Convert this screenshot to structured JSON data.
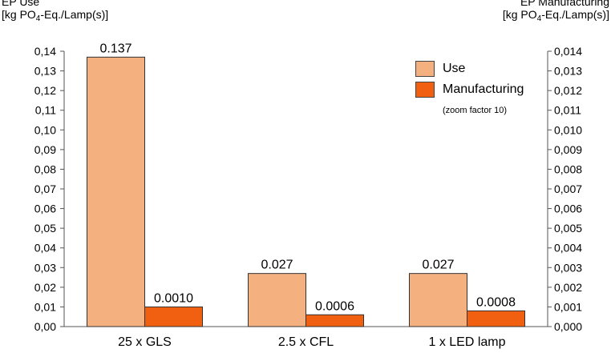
{
  "chart_data": {
    "type": "bar",
    "categories": [
      "25 x GLS",
      "2.5 x CFL",
      "1 x LED lamp"
    ],
    "series": [
      {
        "name": "Use",
        "axis": "left",
        "color": "#f5b07f",
        "values": [
          0.137,
          0.027,
          0.027
        ],
        "labels": [
          "0.137",
          "0.027",
          "0.027"
        ]
      },
      {
        "name": "Manufacturing",
        "axis": "right",
        "color": "#f06010",
        "values": [
          0.001,
          0.0006,
          0.0008
        ],
        "labels": [
          "0.0010",
          "0.0006",
          "0.0008"
        ]
      }
    ],
    "ylabel_left": {
      "line1": "EP Use",
      "line2_pre": "[kg PO",
      "line2_sub": "4",
      "line2_post": "-Eq./Lamp(s)]"
    },
    "ylabel_right": {
      "line1": "EP Manufacturing",
      "line2_pre": "[kg PO",
      "line2_sub": "4",
      "line2_post": "-Eq./Lamp(s)]"
    },
    "ylim_left": [
      0,
      0.14
    ],
    "ylim_right": [
      0,
      0.014
    ],
    "yticks_left": [
      "0,00",
      "0,01",
      "0,02",
      "0,03",
      "0,04",
      "0,05",
      "0,06",
      "0,07",
      "0,08",
      "0,09",
      "0,10",
      "0,11",
      "0,12",
      "0,13",
      "0,14"
    ],
    "yticks_right": [
      "0,000",
      "0,001",
      "0,002",
      "0,003",
      "0,004",
      "0,005",
      "0,006",
      "0,007",
      "0,008",
      "0,009",
      "0,010",
      "0,011",
      "0,012",
      "0,013",
      "0,014"
    ],
    "legend": {
      "position": "top-right",
      "items": [
        "Use",
        "Manufacturing"
      ],
      "note": "(zoom factor 10)"
    },
    "grid": false
  }
}
